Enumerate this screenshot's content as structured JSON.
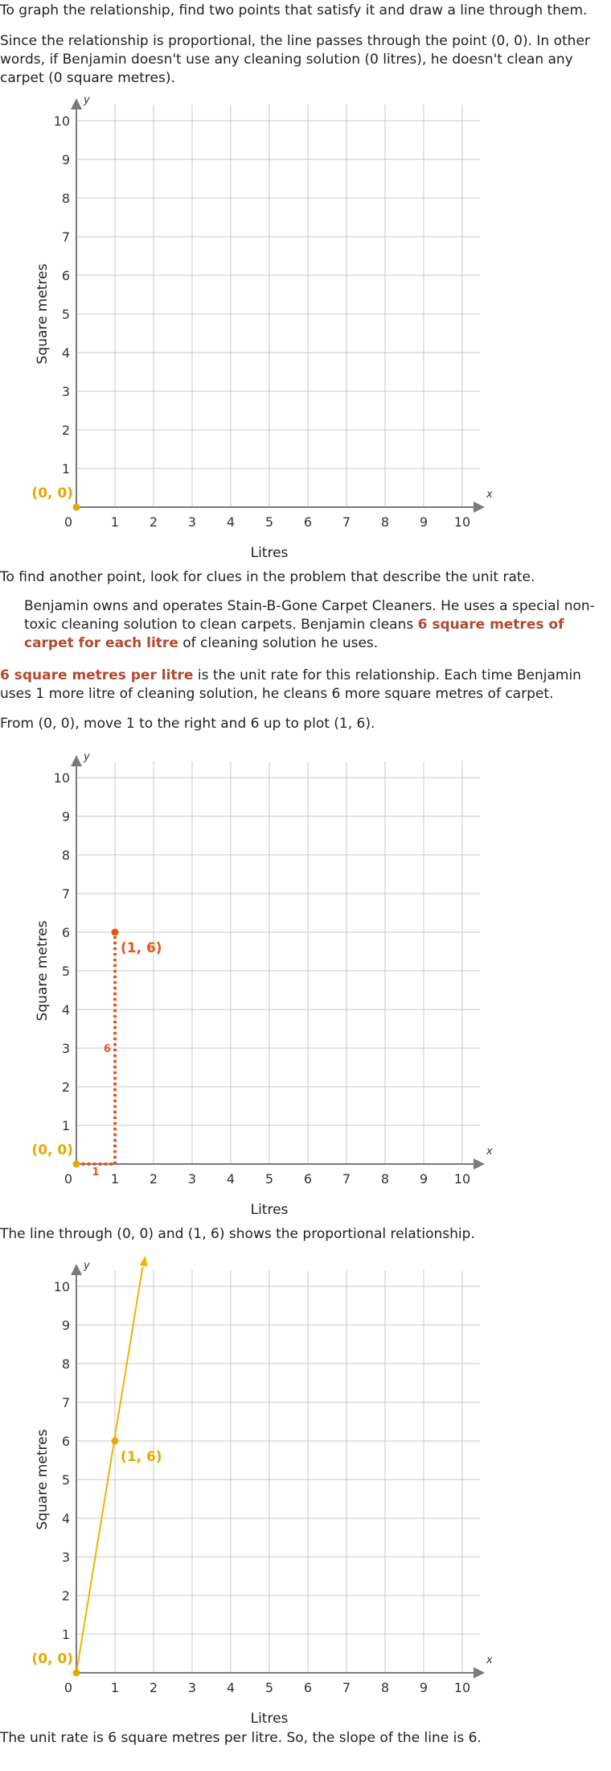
{
  "text": {
    "p1": "To graph the relationship, find two points that satisfy it and draw a line through them.",
    "p2": "Since the relationship is proportional, the line passes through the point (0, 0). In other words, if Benjamin doesn't use any cleaning solution (0 litres), he doesn't clean any carpet (0 square metres).",
    "p3": "To find another point, look for clues in the problem that describe the unit rate.",
    "quote_before": "Benjamin owns and operates Stain-B-Gone Carpet Cleaners. He uses a special non-toxic cleaning solution to clean carpets. Benjamin cleans ",
    "quote_highlight": "6 square metres of carpet for each litre",
    "quote_after": " of cleaning solution he uses.",
    "p4_highlight": "6 square metres per litre",
    "p4_rest": " is the unit rate for this relationship. Each time Benjamin uses 1 more litre of cleaning solution, he cleans 6 more square metres of carpet.",
    "p5": "From (0, 0), move 1 to the right and 6 up to plot (1, 6).",
    "p6": "The line through (0, 0) and (1, 6) shows the proportional relationship.",
    "p7": "The unit rate is 6 square metres per litre. So, the slope of the line is 6."
  },
  "colors": {
    "origin_point": "#e6a800",
    "rate_point": "#e4561a",
    "line": "#f2b200",
    "grid": "#c8c8c8",
    "axis": "#7a7a7a",
    "highlight_text": "#b04a2f"
  },
  "chart_data": [
    {
      "type": "scatter",
      "title": "",
      "xlabel": "Litres",
      "ylabel": "Square metres",
      "x_axis_letter": "x",
      "y_axis_letter": "y",
      "xlim": [
        0,
        10
      ],
      "ylim": [
        0,
        10
      ],
      "xticks": [
        "0",
        "1",
        "2",
        "3",
        "4",
        "5",
        "6",
        "7",
        "8",
        "9",
        "10"
      ],
      "yticks": [
        "1",
        "2",
        "3",
        "4",
        "5",
        "6",
        "7",
        "8",
        "9",
        "10"
      ],
      "grid": true,
      "points": [
        {
          "x": 0,
          "y": 0,
          "label": "(0, 0)",
          "color": "#e6a800"
        }
      ]
    },
    {
      "type": "scatter",
      "title": "",
      "xlabel": "Litres",
      "ylabel": "Square metres",
      "x_axis_letter": "x",
      "y_axis_letter": "y",
      "xlim": [
        0,
        10
      ],
      "ylim": [
        0,
        10
      ],
      "xticks": [
        "0",
        "1",
        "2",
        "3",
        "4",
        "5",
        "6",
        "7",
        "8",
        "9",
        "10"
      ],
      "yticks": [
        "1",
        "2",
        "3",
        "4",
        "5",
        "6",
        "7",
        "8",
        "9",
        "10"
      ],
      "grid": true,
      "points": [
        {
          "x": 0,
          "y": 0,
          "label": "(0, 0)",
          "color": "#e6a800"
        },
        {
          "x": 1,
          "y": 6,
          "label": "(1, 6)",
          "color": "#e4561a"
        }
      ],
      "run": {
        "from": [
          0,
          0
        ],
        "to": [
          1,
          0
        ],
        "label": "1",
        "color": "#e4561a"
      },
      "rise": {
        "from": [
          1,
          0
        ],
        "to": [
          1,
          6
        ],
        "label": "6",
        "color": "#e4561a"
      }
    },
    {
      "type": "line",
      "title": "",
      "xlabel": "Litres",
      "ylabel": "Square metres",
      "x_axis_letter": "x",
      "y_axis_letter": "y",
      "xlim": [
        0,
        10
      ],
      "ylim": [
        0,
        10
      ],
      "xticks": [
        "0",
        "1",
        "2",
        "3",
        "4",
        "5",
        "6",
        "7",
        "8",
        "9",
        "10"
      ],
      "yticks": [
        "1",
        "2",
        "3",
        "4",
        "5",
        "6",
        "7",
        "8",
        "9",
        "10"
      ],
      "grid": true,
      "points": [
        {
          "x": 0,
          "y": 0,
          "label": "(0, 0)",
          "color": "#e6a800"
        },
        {
          "x": 1,
          "y": 6,
          "label": "(1, 6)",
          "color": "#e6a800"
        }
      ],
      "line": {
        "through": [
          [
            0,
            0
          ],
          [
            1,
            6
          ]
        ],
        "color": "#f2b200",
        "slope": 6
      }
    }
  ]
}
